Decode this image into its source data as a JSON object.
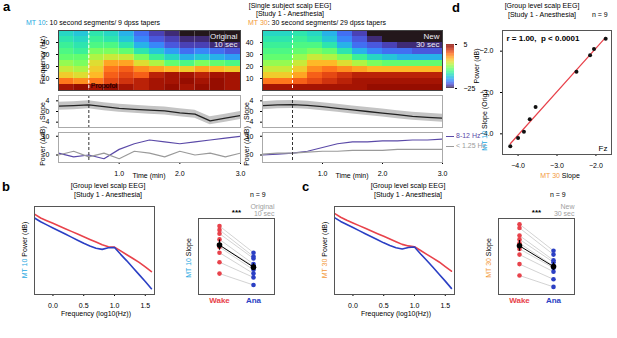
{
  "chart_data": [
    {
      "type": "heatmap",
      "panel": "a",
      "title": "[Single subject scalp EEG]",
      "subtitle": "[Study 1 - Anesthesia]",
      "header": [
        {
          "text": "MT 10",
          "color": "#27a9e1"
        },
        {
          "text": ": 10 second segments/ 9 dpss tapers"
        }
      ],
      "annotations": [
        "Original",
        "10 sec"
      ],
      "ylabel": "Frequency (Hz)",
      "x": [
        0,
        0.25,
        0.5,
        0.75,
        1,
        1.25,
        1.5,
        1.75,
        2,
        2.25,
        2.5,
        2.75,
        3
      ],
      "y": [
        0,
        5,
        10,
        15,
        20,
        25,
        30,
        35,
        40,
        45,
        50
      ],
      "xlim": [
        0,
        3
      ],
      "ylim": [
        0,
        50
      ],
      "yticks": [
        10,
        20,
        30,
        40
      ],
      "tick_labels": "y",
      "color_range": [
        -25,
        5
      ],
      "cells": [
        [
          3,
          4,
          3,
          4,
          3,
          2,
          3,
          4,
          3,
          4,
          4,
          3
        ],
        [
          -2,
          -3,
          -2,
          0,
          1,
          2,
          3,
          3,
          4,
          3,
          4,
          3
        ],
        [
          -6,
          -7,
          -5,
          -1,
          0,
          -1,
          2,
          3,
          3,
          2,
          3,
          3
        ],
        [
          -8,
          -9,
          -6,
          -2,
          -1,
          -3,
          -4,
          -5,
          -6,
          -4,
          -5,
          -6
        ],
        [
          -10,
          -11,
          -7,
          -4,
          -4,
          -7,
          -9,
          -12,
          -13,
          -11,
          -12,
          -13
        ],
        [
          -12,
          -12,
          -9,
          -8,
          -8,
          -11,
          -14,
          -16,
          -18,
          -17,
          -18,
          -19
        ],
        [
          -13,
          -14,
          -11,
          -11,
          -12,
          -15,
          -17,
          -19,
          -21,
          -20,
          -21,
          -22
        ],
        [
          -14,
          -15,
          -13,
          -13,
          -15,
          -18,
          -20,
          -22,
          -23,
          -23,
          -24,
          -24
        ],
        [
          -15,
          -16,
          -14,
          -15,
          -17,
          -20,
          -22,
          -23,
          -24,
          -24,
          -25,
          -25
        ],
        [
          -16,
          -17,
          -15,
          -16,
          -18,
          -21,
          -23,
          -24,
          -25,
          -25,
          -25,
          -25
        ]
      ],
      "events": [
        {
          "x": 0.5,
          "label": "Propofol"
        }
      ]
    },
    {
      "type": "heatmap",
      "header": [
        {
          "text": "MT 30",
          "color": "#f39a3b"
        },
        {
          "text": ": 30 second segments/ 29 dpss tapers"
        }
      ],
      "annotations": [
        "New",
        "30 sec"
      ],
      "x": [
        0,
        0.25,
        0.5,
        0.75,
        1,
        1.25,
        1.5,
        1.75,
        2,
        2.25,
        2.5,
        2.75,
        3
      ],
      "y": [
        0,
        5,
        10,
        15,
        20,
        25,
        30,
        35,
        40,
        45,
        50
      ],
      "xlim": [
        0,
        3
      ],
      "ylim": [
        0,
        50
      ],
      "yticks": [
        10,
        20,
        30,
        40
      ],
      "tick_labels": "y",
      "color_range": [
        -25,
        5
      ],
      "color_ticks": [
        5,
        -25
      ],
      "color_label": "Power (dB)",
      "cells": [
        [
          3,
          3,
          3,
          3,
          3,
          3,
          3,
          4,
          4,
          4,
          4,
          4
        ],
        [
          -2,
          -2,
          -1,
          0,
          1,
          2,
          3,
          3,
          3,
          3,
          3,
          3
        ],
        [
          -6,
          -6,
          -4,
          -1,
          0,
          1,
          2,
          2,
          2,
          2,
          2,
          2
        ],
        [
          -8,
          -8,
          -6,
          -3,
          -2,
          -3,
          -4,
          -5,
          -5,
          -5,
          -5,
          -5
        ],
        [
          -10,
          -10,
          -8,
          -5,
          -5,
          -7,
          -9,
          -11,
          -12,
          -12,
          -12,
          -12
        ],
        [
          -12,
          -12,
          -10,
          -8,
          -9,
          -11,
          -14,
          -16,
          -17,
          -18,
          -18,
          -18
        ],
        [
          -13,
          -13,
          -12,
          -11,
          -12,
          -15,
          -18,
          -20,
          -21,
          -21,
          -22,
          -22
        ],
        [
          -14,
          -14,
          -13,
          -13,
          -15,
          -18,
          -21,
          -22,
          -23,
          -24,
          -24,
          -24
        ],
        [
          -15,
          -15,
          -14,
          -15,
          -17,
          -20,
          -22,
          -24,
          -25,
          -25,
          -25,
          -25
        ],
        [
          -16,
          -16,
          -15,
          -16,
          -18,
          -21,
          -23,
          -25,
          -25,
          -25,
          -25,
          -25
        ]
      ],
      "events": [
        {
          "x": 0.5
        }
      ]
    },
    {
      "type": "line",
      "ylabel": "Slope",
      "x": [
        0,
        0.25,
        0.5,
        0.75,
        1,
        1.25,
        1.5,
        1.75,
        2,
        2.25,
        2.5,
        2.75,
        3
      ],
      "xlim": [
        0,
        3
      ],
      "ylim": [
        -6,
        6
      ],
      "yticks": [
        4,
        0,
        -4
      ],
      "tick_labels": "y",
      "series": [
        {
          "color": "#222222",
          "values": [
            2,
            2.2,
            2.5,
            1.8,
            1.2,
            0.8,
            0.5,
            0.2,
            -0.5,
            -1,
            -3.5,
            -2.5,
            -1.5
          ],
          "lower": [
            0.5,
            0.7,
            1,
            0.3,
            -0.3,
            -0.7,
            -1,
            -1.3,
            -2,
            -2.5,
            -5,
            -4,
            -3
          ],
          "upper": [
            3.5,
            3.7,
            4,
            3.3,
            2.7,
            2.3,
            2,
            1.7,
            1,
            0.5,
            -2,
            -1,
            0
          ]
        }
      ],
      "events": [
        {
          "x": 0.5
        }
      ]
    },
    {
      "type": "line",
      "ylabel": "Slope",
      "x": [
        0,
        0.25,
        0.5,
        0.75,
        1,
        1.25,
        1.5,
        1.75,
        2,
        2.25,
        2.5,
        2.75,
        3
      ],
      "xlim": [
        0,
        3
      ],
      "ylim": [
        -6,
        6
      ],
      "yticks": [
        4,
        0,
        -4
      ],
      "tick_labels": "y",
      "series": [
        {
          "color": "#222222",
          "values": [
            2.2,
            2.5,
            2.6,
            2.3,
            1.8,
            1.2,
            0.6,
            0,
            -0.6,
            -1.2,
            -1.8,
            -2.2,
            -2.5
          ],
          "lower": [
            0.7,
            1,
            1.1,
            0.8,
            0.3,
            -0.3,
            -0.9,
            -1.5,
            -2.1,
            -2.7,
            -3.3,
            -3.7,
            -4
          ],
          "upper": [
            3.7,
            4,
            4.1,
            3.8,
            3.3,
            2.7,
            2.1,
            1.5,
            0.9,
            0.3,
            -0.3,
            -0.7,
            -1
          ]
        }
      ],
      "events": [
        {
          "x": 0.5
        }
      ]
    },
    {
      "type": "line",
      "ylabel": "Power (ΔdB)",
      "xlabel": "Time (min)",
      "x": [
        0,
        0.25,
        0.5,
        0.75,
        1,
        1.25,
        1.5,
        1.75,
        2,
        2.25,
        2.5,
        2.75,
        3
      ],
      "xlim": [
        0,
        3
      ],
      "xticks": [
        1,
        2,
        3
      ],
      "ylim": [
        -4,
        12
      ],
      "yticks": [
        10,
        0
      ],
      "series": [
        {
          "color": "#5b4aa8",
          "values": [
            1,
            -1,
            0,
            -2,
            3,
            6,
            8,
            7,
            6,
            7,
            8,
            9,
            10
          ]
        },
        {
          "color": "#9a9a9a",
          "values": [
            0,
            2,
            -1,
            1,
            -2,
            2,
            1,
            -1,
            2,
            0,
            1,
            -1,
            1
          ]
        }
      ],
      "events": [
        {
          "x": 0.5
        }
      ]
    },
    {
      "type": "line",
      "ylabel": "Power (ΔdB)",
      "xlabel": "Time (min)",
      "legend": "right",
      "x": [
        0,
        0.25,
        0.5,
        0.75,
        1,
        1.25,
        1.5,
        1.75,
        2,
        2.25,
        2.5,
        2.75,
        3
      ],
      "xlim": [
        0,
        3
      ],
      "xticks": [
        1,
        2,
        3
      ],
      "ylim": [
        -4,
        12
      ],
      "yticks": [
        10,
        0
      ],
      "series": [
        {
          "name": "8-12 Hz",
          "color": "#5b4aa8",
          "values": [
            0,
            0.5,
            1,
            2,
            4,
            6,
            7,
            7,
            7.5,
            7.5,
            8,
            8,
            8.5
          ]
        },
        {
          "name": "< 1.25 Hz",
          "color": "#9a9a9a",
          "values": [
            0.5,
            1,
            1,
            1.5,
            2,
            2,
            2.5,
            2.5,
            2.5,
            3,
            3,
            3,
            3
          ]
        }
      ],
      "events": [
        {
          "x": 0.5
        }
      ]
    },
    {
      "type": "line",
      "panel": "b",
      "title": "[Group level scalp EEG]",
      "subtitle": "[Study 1 - Anesthesia]",
      "annotations": [
        "n = 9"
      ],
      "ylabel": [
        {
          "text": "MT 10",
          "color": "#27a9e1"
        },
        {
          "text": " Power (dB)"
        }
      ],
      "xlabel": "Frequency (log10(Hz))",
      "x": [
        -0.3,
        -0.2,
        -0.1,
        0,
        0.1,
        0.2,
        0.3,
        0.4,
        0.5,
        0.6,
        0.7,
        0.8,
        0.9,
        1.0,
        1.1,
        1.2,
        1.3,
        1.4,
        1.5,
        1.6
      ],
      "xlim": [
        -0.3,
        1.65
      ],
      "xticks": [
        0,
        0.5,
        1,
        1.5
      ],
      "ylim": [
        -10,
        13
      ],
      "tick_labels": "x",
      "series": [
        {
          "color": "#e8424b",
          "values": [
            11,
            10,
            9.3,
            8.6,
            7.9,
            7.2,
            6.5,
            5.8,
            5.1,
            4.4,
            3.7,
            3.0,
            2.5,
            2.4,
            1.4,
            0.4,
            -0.6,
            -1.6,
            -2.8,
            -4
          ]
        },
        {
          "color": "#2b3fc4",
          "values": [
            10,
            9,
            8.2,
            7.4,
            6.6,
            5.8,
            5.0,
            4.2,
            3.4,
            2.7,
            2.1,
            1.8,
            2.2,
            2.3,
            0.5,
            -1.2,
            -3,
            -4.8,
            -6.6,
            -8.5
          ]
        }
      ]
    },
    {
      "type": "scatter",
      "ylabel": [
        {
          "text": "MT 10",
          "color": "#27a9e1"
        },
        {
          "text": " Slope"
        }
      ],
      "annotations": [
        "Original",
        "10 sec"
      ],
      "significance": "***",
      "ylim": [
        -4.5,
        -0.5
      ],
      "tick_labels": "x",
      "series": [
        {
          "name": "Wake",
          "color": "#e8424b",
          "values": [
            -0.9,
            -1.1,
            -1.3,
            -1.6,
            -1.9,
            -2.0,
            -2.3,
            -2.8,
            -3.4
          ],
          "mean": -1.9,
          "error": 0.27
        },
        {
          "name": "Ana",
          "color": "#2b3fc4",
          "values": [
            -2.3,
            -2.5,
            -2.6,
            -2.9,
            -3.0,
            -3.2,
            -3.4,
            -3.6,
            -4.0
          ],
          "mean": -3.06,
          "error": 0.18
        }
      ]
    },
    {
      "type": "line",
      "panel": "c",
      "title": "[Group level scalp EEG]",
      "subtitle": "[Study 1 - Anesthesia]",
      "annotations": [
        "n = 9"
      ],
      "ylabel": [
        {
          "text": "MT 30",
          "color": "#f39a3b"
        },
        {
          "text": " Power (dB)"
        }
      ],
      "xlabel": "Frequency (log10(Hz))",
      "x": [
        -0.3,
        -0.2,
        -0.1,
        0,
        0.1,
        0.2,
        0.3,
        0.4,
        0.5,
        0.6,
        0.7,
        0.8,
        0.9,
        1.0,
        1.1,
        1.2,
        1.3,
        1.4,
        1.5,
        1.6
      ],
      "xlim": [
        -0.3,
        1.65
      ],
      "xticks": [
        0,
        0.5,
        1,
        1.5
      ],
      "ylim": [
        -10,
        13
      ],
      "tick_labels": "x",
      "series": [
        {
          "color": "#e8424b",
          "values": [
            11.2,
            10.2,
            9.4,
            8.7,
            8.0,
            7.3,
            6.6,
            5.9,
            5.2,
            4.5,
            3.8,
            3.1,
            2.7,
            2.5,
            1.5,
            0.5,
            -0.5,
            -1.5,
            -2.7,
            -3.9
          ]
        },
        {
          "color": "#2b3fc4",
          "values": [
            10.1,
            9.1,
            8.3,
            7.5,
            6.7,
            5.9,
            5.1,
            4.3,
            3.5,
            2.8,
            2.2,
            1.9,
            2.3,
            2.4,
            0.6,
            -1.1,
            -2.9,
            -4.7,
            -6.5,
            -8.4
          ]
        }
      ]
    },
    {
      "type": "scatter",
      "ylabel": [
        {
          "text": "MT 30",
          "color": "#f39a3b"
        },
        {
          "text": " Slope"
        }
      ],
      "annotations": [
        "New",
        "30 sec"
      ],
      "significance": "***",
      "ylim": [
        -4.5,
        -0.5
      ],
      "tick_labels": "x",
      "series": [
        {
          "name": "Wake",
          "color": "#e8424b",
          "values": [
            -0.8,
            -1.0,
            -1.4,
            -1.6,
            -1.8,
            -2.1,
            -2.4,
            -2.9,
            -3.5
          ],
          "mean": -1.94,
          "error": 0.28
        },
        {
          "name": "Ana",
          "color": "#2b3fc4",
          "values": [
            -2.2,
            -2.4,
            -2.7,
            -2.8,
            -3.0,
            -3.1,
            -3.3,
            -3.7,
            -4.1
          ],
          "mean": -3.03,
          "error": 0.2
        }
      ]
    },
    {
      "type": "scatter",
      "panel": "d",
      "title": "[Group level scalp EEG]",
      "subtitle": "[Study 1 - Anesthesia]",
      "annotations": [
        "n = 9",
        "r = 1.00,  p < 0.0001",
        "Fz"
      ],
      "xlabel": [
        {
          "text": "MT 30",
          "color": "#f39a3b"
        },
        {
          "text": " Slope"
        }
      ],
      "ylabel": [
        {
          "text": "MT 10",
          "color": "#27a9e1"
        },
        {
          "text": " Slope (Orig.)"
        }
      ],
      "x": [
        -4.2,
        -4.0,
        -3.85,
        -3.7,
        -3.55,
        -2.5,
        -2.15,
        -2.05,
        -1.75
      ],
      "values": [
        -4.3,
        -4.1,
        -3.95,
        -3.65,
        -3.35,
        -2.5,
        -2.1,
        -1.95,
        -1.7
      ],
      "xlim": [
        -4.4,
        -1.6
      ],
      "xticks": [
        -4,
        -3,
        -2
      ],
      "ylim": [
        -4.5,
        -1.5
      ],
      "yticks": [
        -2,
        -3,
        -4
      ],
      "color": "#111111"
    }
  ]
}
